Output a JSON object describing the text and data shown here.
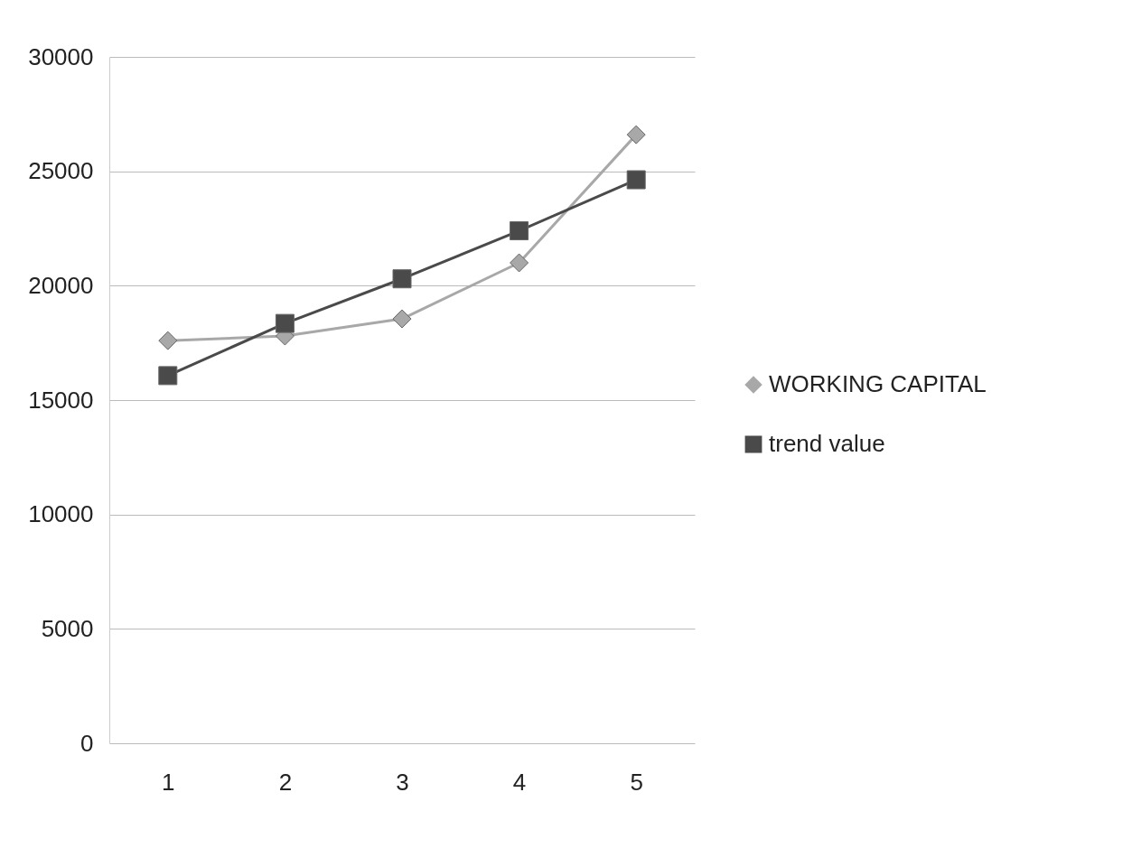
{
  "chart_data": {
    "type": "line",
    "categories": [
      "1",
      "2",
      "3",
      "4",
      "5"
    ],
    "series": [
      {
        "name": "WORKING CAPITAL",
        "color": "#a8a8a8",
        "marker": "diamond",
        "values": [
          17600,
          17800,
          18550,
          21000,
          26600
        ]
      },
      {
        "name": "trend value",
        "color": "#4a4a4a",
        "marker": "square",
        "values": [
          16070,
          18350,
          20300,
          22400,
          24630
        ]
      }
    ],
    "ylim": [
      0,
      30000
    ],
    "yticks": [
      0,
      5000,
      10000,
      15000,
      20000,
      25000,
      30000
    ],
    "grid": "y",
    "legend": "right",
    "line_style": "solid"
  }
}
